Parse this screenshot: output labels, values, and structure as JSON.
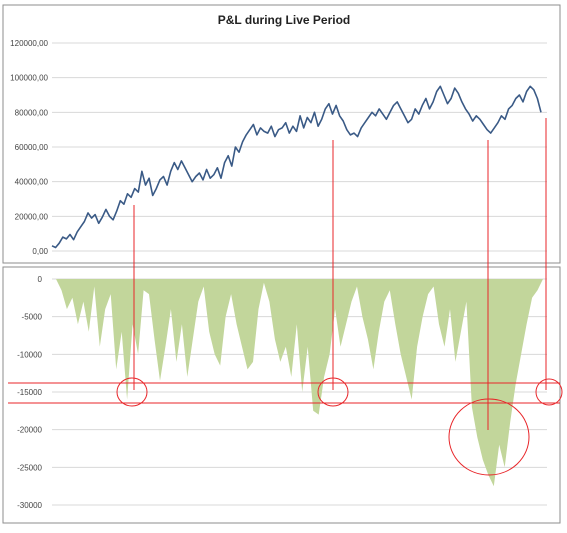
{
  "colors": {
    "pnl_line": "#3a5a86",
    "drawdown_fill": "#c2d69b",
    "gridline": "#d8d8d8",
    "highlight": "#e8262a",
    "panel_border": "#8e8e8e"
  },
  "chart_data": [
    {
      "type": "line",
      "title": "P&L during Live Period",
      "xlabel": "",
      "ylabel": "",
      "ylim": [
        0,
        120000
      ],
      "ytick_labels": [
        "0,00",
        "20000,00",
        "40000,00",
        "60000,00",
        "80000,00",
        "100000,00",
        "120000,00"
      ],
      "grid": true,
      "series": [
        {
          "values": [
            3000,
            2000,
            4500,
            8000,
            7000,
            9500,
            6500,
            11000,
            14000,
            17000,
            22000,
            19000,
            21000,
            16000,
            19500,
            24000,
            20000,
            18000,
            23000,
            29000,
            27000,
            33000,
            31000,
            36000,
            34000,
            46000,
            38000,
            42000,
            32000,
            36000,
            41000,
            43000,
            38000,
            46000,
            51000,
            47000,
            52000,
            48000,
            44000,
            40000,
            43000,
            45000,
            41000,
            47000,
            42000,
            44000,
            48000,
            42000,
            51000,
            55000,
            49000,
            60000,
            57000,
            63000,
            67000,
            70000,
            73000,
            67000,
            71000,
            69000,
            68000,
            72000,
            66000,
            70000,
            71000,
            74000,
            68000,
            72000,
            69000,
            78000,
            71000,
            77000,
            74000,
            80000,
            72000,
            76000,
            82000,
            85000,
            79000,
            84000,
            78000,
            75000,
            70000,
            67000,
            68000,
            66000,
            71000,
            74000,
            77000,
            80000,
            78000,
            82000,
            79000,
            76000,
            80000,
            84000,
            86000,
            82000,
            78000,
            74000,
            76000,
            82000,
            79000,
            84000,
            88000,
            82000,
            86000,
            92000,
            95000,
            90000,
            85000,
            88000,
            94000,
            91000,
            86000,
            82000,
            79000,
            75000,
            78000,
            76000,
            73000,
            70000,
            68000,
            71000,
            74000,
            78000,
            76000,
            82000,
            84000,
            88000,
            90000,
            86000,
            92000,
            95000,
            93000,
            88000,
            80000
          ]
        }
      ]
    },
    {
      "type": "area",
      "title": "",
      "xlabel": "",
      "ylabel": "",
      "ylim": [
        -30000,
        0
      ],
      "ytick_labels": [
        "0",
        "-5000",
        "-10000",
        "-15000",
        "-20000",
        "-25000",
        "-30000"
      ],
      "grid": true,
      "series": [
        {
          "values": [
            0,
            -1500,
            -4000,
            -2500,
            -6000,
            -3000,
            -7000,
            -1000,
            -9000,
            -4000,
            -2000,
            -12000,
            -7000,
            -16000,
            -6000,
            -10000,
            -1500,
            -2000,
            -8000,
            -13500,
            -9000,
            -4000,
            -11000,
            -6000,
            -13000,
            -8000,
            -3000,
            -1000,
            -7000,
            -10000,
            -11500,
            -5000,
            -2000,
            -6000,
            -9000,
            -12000,
            -11000,
            -4000,
            -500,
            -3000,
            -8000,
            -11000,
            -9000,
            -13000,
            -6000,
            -15000,
            -9000,
            -17500,
            -18000,
            -13000,
            -10000,
            -4000,
            -9000,
            -6000,
            -3000,
            -1000,
            -5000,
            -8000,
            -12000,
            -7000,
            -3000,
            -1500,
            -6000,
            -10000,
            -13000,
            -16000,
            -9000,
            -5000,
            -2000,
            -1000,
            -6000,
            -9000,
            -4000,
            -11000,
            -7000,
            -3000,
            -17000,
            -21000,
            -24000,
            -26000,
            -27500,
            -22000,
            -25000,
            -19000,
            -14000,
            -10000,
            -6000,
            -2500,
            -1500,
            0
          ]
        }
      ]
    }
  ]
}
